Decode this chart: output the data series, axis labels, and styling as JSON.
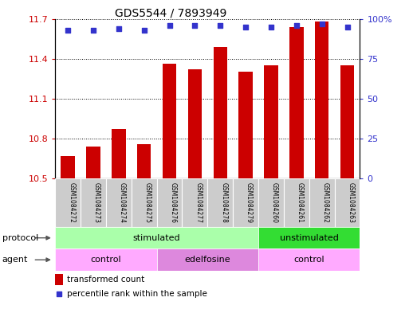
{
  "title": "GDS5544 / 7893949",
  "samples": [
    "GSM1084272",
    "GSM1084273",
    "GSM1084274",
    "GSM1084275",
    "GSM1084276",
    "GSM1084277",
    "GSM1084278",
    "GSM1084279",
    "GSM1084260",
    "GSM1084261",
    "GSM1084262",
    "GSM1084263"
  ],
  "bar_values": [
    10.67,
    10.74,
    10.87,
    10.76,
    11.36,
    11.32,
    11.49,
    11.3,
    11.35,
    11.64,
    11.68,
    11.35
  ],
  "percentile_values": [
    93,
    93,
    94,
    93,
    96,
    96,
    96,
    95,
    95,
    96,
    97,
    95
  ],
  "bar_color": "#cc0000",
  "percentile_color": "#3333cc",
  "ylim_left": [
    10.5,
    11.7
  ],
  "ylim_right": [
    0,
    100
  ],
  "yticks_left": [
    10.5,
    10.8,
    11.1,
    11.4,
    11.7
  ],
  "yticks_right": [
    0,
    25,
    50,
    75,
    100
  ],
  "protocol_groups": [
    {
      "label": "stimulated",
      "start": 0,
      "end": 8,
      "color": "#aaffaa"
    },
    {
      "label": "unstimulated",
      "start": 8,
      "end": 12,
      "color": "#33dd33"
    }
  ],
  "agent_groups": [
    {
      "label": "control",
      "start": 0,
      "end": 4,
      "color": "#ffaaff"
    },
    {
      "label": "edelfosine",
      "start": 4,
      "end": 8,
      "color": "#dd88dd"
    },
    {
      "label": "control",
      "start": 8,
      "end": 12,
      "color": "#ffaaff"
    }
  ],
  "legend_bar_label": "transformed count",
  "legend_pct_label": "percentile rank within the sample",
  "protocol_label": "protocol",
  "agent_label": "agent",
  "sample_box_color": "#cccccc",
  "title_fontsize": 10,
  "tick_fontsize": 8,
  "label_fontsize": 8,
  "row_fontsize": 8
}
